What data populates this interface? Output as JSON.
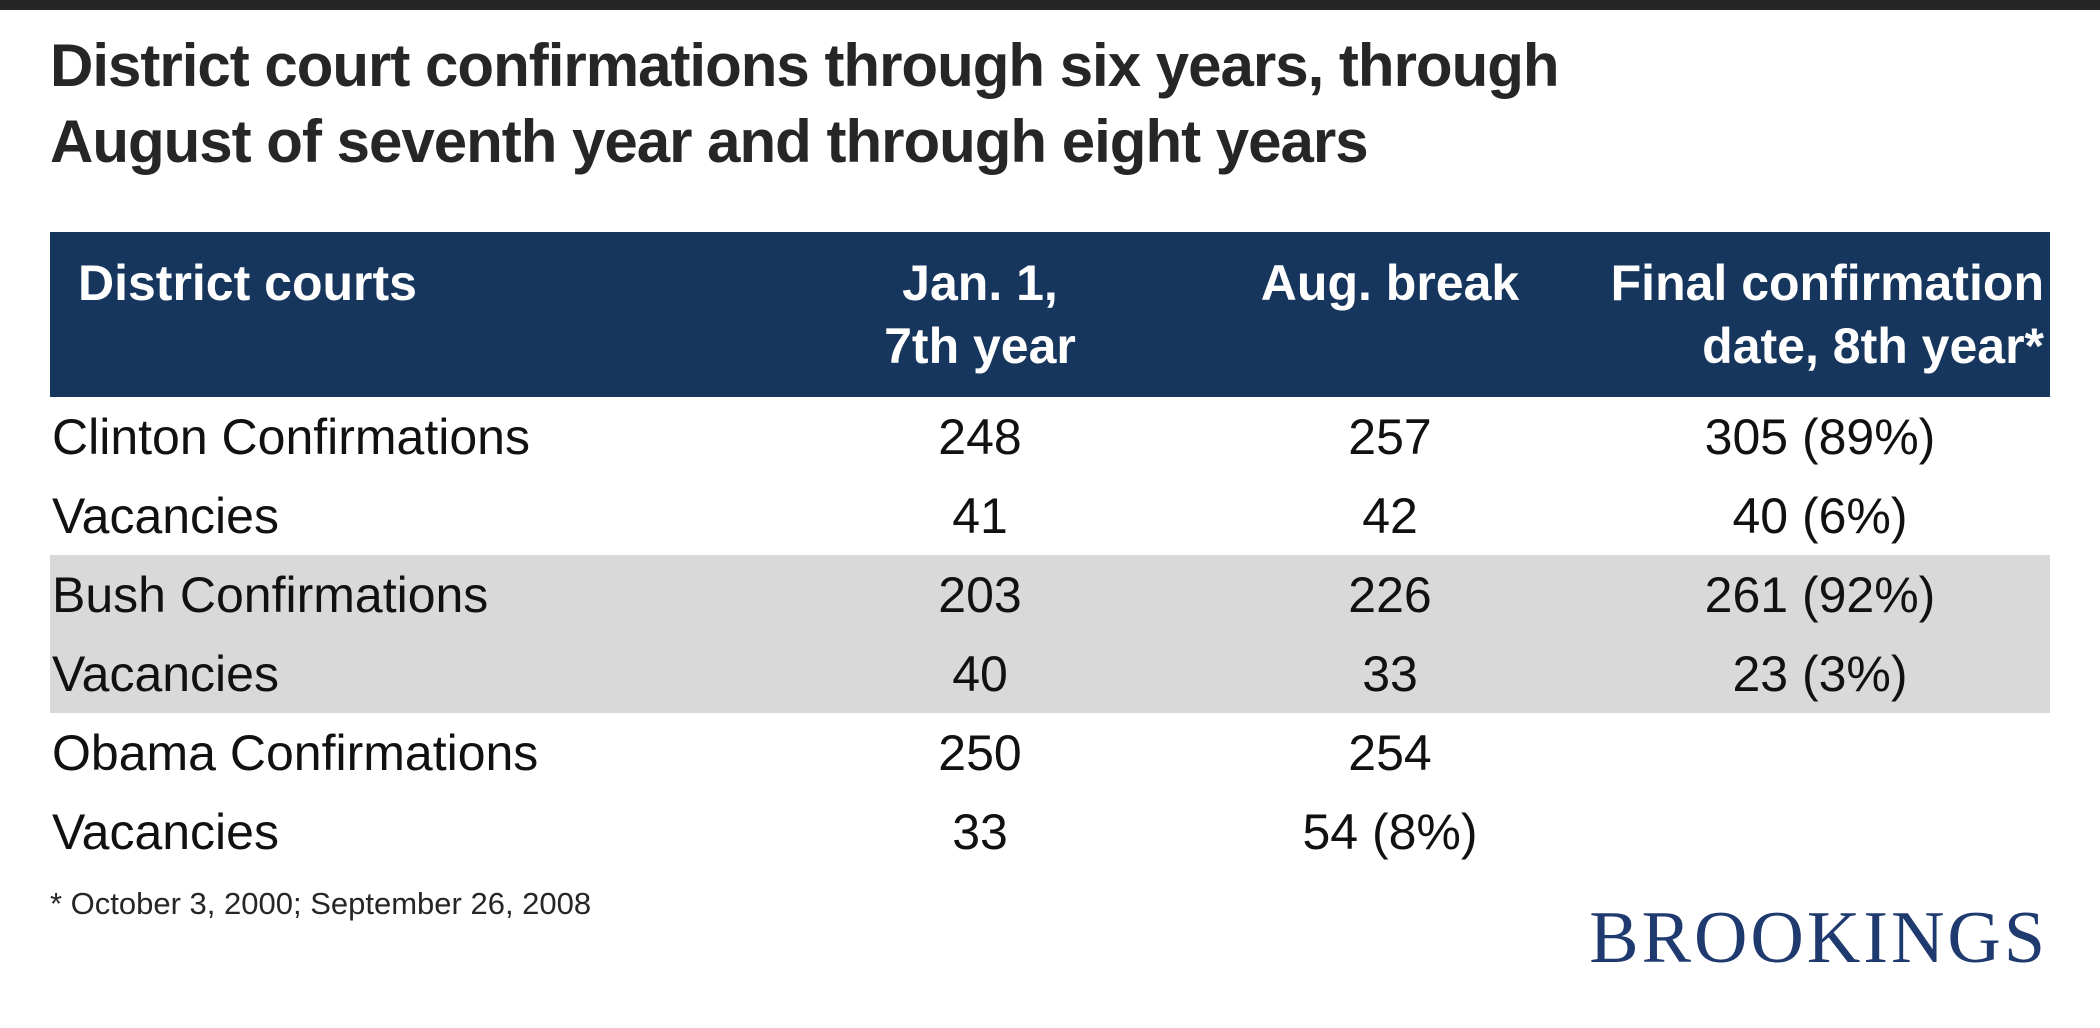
{
  "page": {
    "title": "District court confirmations through six years, through\nAugust of seventh year and through eight years",
    "footnote": "* October 3, 2000; September 26, 2008",
    "logo_text": "BROOKINGS"
  },
  "colors": {
    "header_background": "#17365D",
    "shaded_row_background": "#D9D9D9",
    "logo_navy": "#1E3A6E",
    "title_text": "#262626",
    "top_bar": "#262626"
  },
  "chart_data": {
    "type": "table",
    "title": "District court confirmations through six years, through August of seventh year and through eight years",
    "columns": [
      "District courts",
      "Jan. 1,\n7th year",
      "Aug. break",
      "Final confirmation\ndate, 8th year*"
    ],
    "rows": [
      {
        "shaded": false,
        "cells": [
          "Clinton Confirmations",
          "248",
          "257",
          "305 (89%)"
        ]
      },
      {
        "shaded": false,
        "cells": [
          "Vacancies",
          "41",
          "42",
          "40 (6%)"
        ]
      },
      {
        "shaded": true,
        "cells": [
          "Bush Confirmations",
          "203",
          "226",
          "261 (92%)"
        ]
      },
      {
        "shaded": true,
        "cells": [
          "Vacancies",
          "40",
          "33",
          "23 (3%)"
        ]
      },
      {
        "shaded": false,
        "cells": [
          "Obama Confirmations",
          "250",
          "254",
          ""
        ]
      },
      {
        "shaded": false,
        "cells": [
          "Vacancies",
          "33",
          "54 (8%)",
          ""
        ]
      }
    ],
    "footnote": "* October 3, 2000; September 26, 2008"
  }
}
